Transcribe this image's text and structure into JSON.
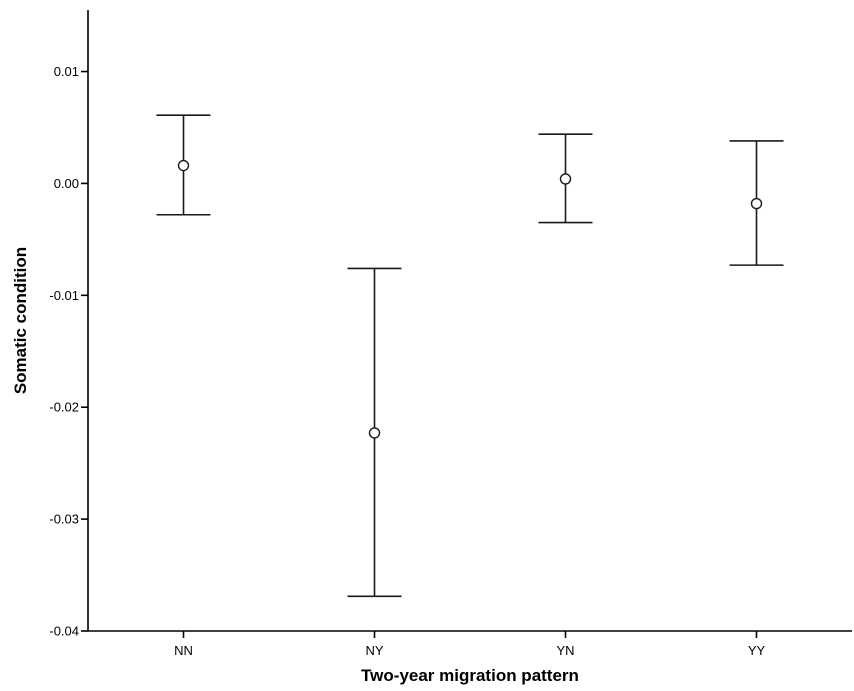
{
  "chart_data": {
    "type": "scatter",
    "subtype": "error-bar",
    "title": "",
    "xlabel": "Two-year migration pattern",
    "ylabel": "Somatic condition",
    "categories": [
      "NN",
      "NY",
      "YN",
      "YY"
    ],
    "series": [
      {
        "means": [
          0.0016,
          -0.0223,
          0.0004,
          -0.0018
        ],
        "lower": [
          -0.0028,
          -0.0369,
          -0.0035,
          -0.0073
        ],
        "upper": [
          0.0061,
          -0.0076,
          0.0044,
          0.0038
        ]
      }
    ],
    "ylim": [
      -0.04,
      0.0155
    ],
    "yticks": [
      "0.01",
      "0.00",
      "-0.01",
      "-0.02",
      "-0.03",
      "-0.04"
    ],
    "ytick_values": [
      0.01,
      0.0,
      -0.01,
      -0.02,
      -0.03,
      -0.04
    ],
    "grid": false,
    "legend": "none",
    "marker": "open-circle"
  }
}
